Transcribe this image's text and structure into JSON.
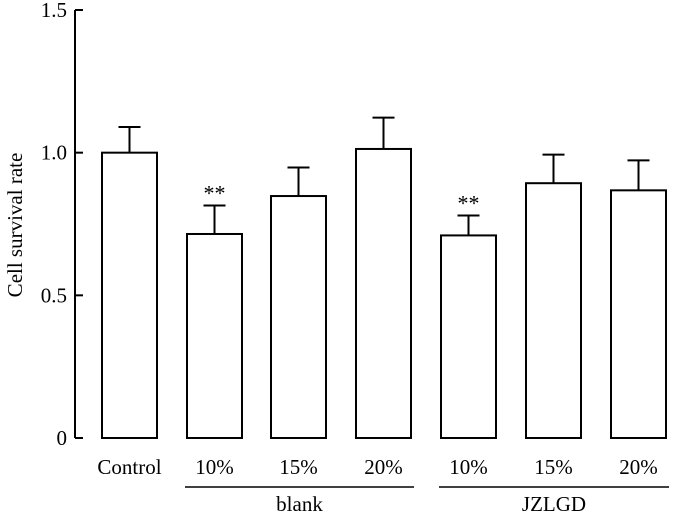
{
  "chart_data": {
    "type": "bar",
    "title": "",
    "xlabel": "",
    "ylabel": "Cell survival rate",
    "ylim": [
      0,
      1.5
    ],
    "yticks": [
      0,
      0.5,
      1.0,
      1.5
    ],
    "ytick_labels": [
      "0",
      "0.5",
      "1.0",
      "1.5"
    ],
    "categories": [
      "Control",
      "10%",
      "15%",
      "20%",
      "10%",
      "15%",
      "20%"
    ],
    "values": [
      1.0,
      0.715,
      0.848,
      1.013,
      0.71,
      0.893,
      0.868
    ],
    "errors": [
      0.09,
      0.1,
      0.1,
      0.11,
      0.07,
      0.1,
      0.105
    ],
    "annotations": [
      "",
      "**",
      "",
      "",
      "**",
      "",
      ""
    ],
    "groups": [
      {
        "label": "blank",
        "start": 1,
        "end": 3
      },
      {
        "label": "JZLGD",
        "start": 4,
        "end": 6
      }
    ],
    "grid": false,
    "legend": "none"
  }
}
